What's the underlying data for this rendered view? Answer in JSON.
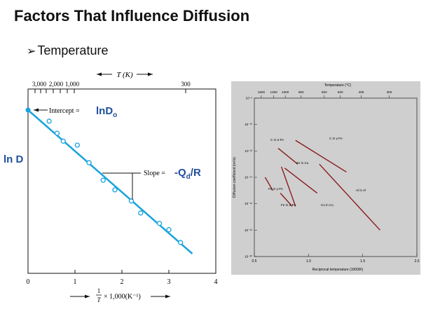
{
  "slide": {
    "title": "Factors That Influence Diffusion",
    "bullet_marker": "➢",
    "bullet": "Temperature"
  },
  "left_plot": {
    "top_axis_label": "T (K)",
    "top_ticks": [
      "3,000",
      "2,000",
      "1,000",
      "300"
    ],
    "y_label": "ln D",
    "intercept_text": "Intercept =",
    "intercept_value": "lnD",
    "intercept_sub": "o",
    "slope_text": "Slope =",
    "slope_value_pre": "-Q",
    "slope_sub": "d",
    "slope_value_post": "/R",
    "bottom_ticks": [
      "0",
      "1",
      "2",
      "3",
      "4"
    ],
    "bottom_axis_label_pre": "1",
    "bottom_axis_label_frac_den": "T",
    "bottom_axis_label_post": "× 1,000(K⁻¹)",
    "line_color": "#1aa3dc",
    "marker_color": "#1aa3dc"
  },
  "right_plot": {
    "top_axis_label": "Temperature (°C)",
    "top_ticks": [
      "1500",
      "1200",
      "1000",
      "800",
      "600",
      "500",
      "400",
      "300"
    ],
    "y_axis_label": "Diffusion coefficient (m²/s)",
    "y_ticks": [
      "10⁻⁸",
      "10⁻¹⁰",
      "10⁻¹²",
      "10⁻¹⁴",
      "10⁻¹⁶",
      "10⁻¹⁸",
      "10⁻²⁰"
    ],
    "x_ticks": [
      "0.5",
      "1.0",
      "1.5",
      "2.0"
    ],
    "x_axis_label": "Reciprocal temperature (1000/K)",
    "series_labels": [
      "C in γ-Fe",
      "C in α-Fe",
      "Zn in Cu",
      "Fe in γ-Fe",
      "Al in Al",
      "Fe in α-Fe",
      "Cu in Cu"
    ],
    "line_color": "#8b1a1a",
    "background": "#cfcfcf"
  },
  "chart_data": [
    {
      "type": "scatter",
      "title": "",
      "xlabel": "1/T × 1,000(K⁻¹)",
      "ylabel": "ln D",
      "xlim": [
        0,
        4
      ],
      "ylim": [
        -10,
        1
      ],
      "fit_line": {
        "x": [
          0,
          3.5
        ],
        "y": [
          0,
          -9.0
        ]
      },
      "points": {
        "x": [
          0.45,
          0.62,
          0.75,
          1.05,
          1.3,
          1.6,
          1.85,
          2.2,
          2.4,
          2.8,
          3.0,
          3.25
        ],
        "y": [
          -0.7,
          -1.45,
          -1.95,
          -2.2,
          -3.3,
          -4.4,
          -5.0,
          -5.7,
          -6.45,
          -7.1,
          -7.5,
          -8.3
        ]
      }
    },
    {
      "type": "line",
      "title": "",
      "xlabel": "Reciprocal temperature (1000/K)",
      "ylabel": "Diffusion coefficient (m²/s)",
      "xlim": [
        0.5,
        2.0
      ],
      "ylim": [
        -20,
        -8
      ],
      "y_scale": "log10",
      "series": [
        {
          "name": "C in α-Fe",
          "x": [
            0.88,
            1.35
          ],
          "y": [
            -11.2,
            -13.6
          ]
        },
        {
          "name": "C in γ-Fe",
          "x": [
            0.72,
            0.9
          ],
          "y": [
            -11.8,
            -13.0
          ]
        },
        {
          "name": "Zn in Cu",
          "x": [
            0.78,
            1.08
          ],
          "y": [
            -13.3,
            -15.2
          ]
        },
        {
          "name": "Fe in γ-Fe",
          "x": [
            0.6,
            0.67
          ],
          "y": [
            -14.0,
            -15.0
          ]
        },
        {
          "name": "Al in Al",
          "x": [
            1.1,
            1.66
          ],
          "y": [
            -13.0,
            -18.0
          ]
        },
        {
          "name": "Fe in α-Fe",
          "x": [
            0.75,
            0.88
          ],
          "y": [
            -13.2,
            -16.2
          ]
        },
        {
          "name": "Cu in Cu",
          "x": [
            0.74,
            0.85
          ],
          "y": [
            -15.2,
            -16.2
          ]
        }
      ]
    }
  ]
}
